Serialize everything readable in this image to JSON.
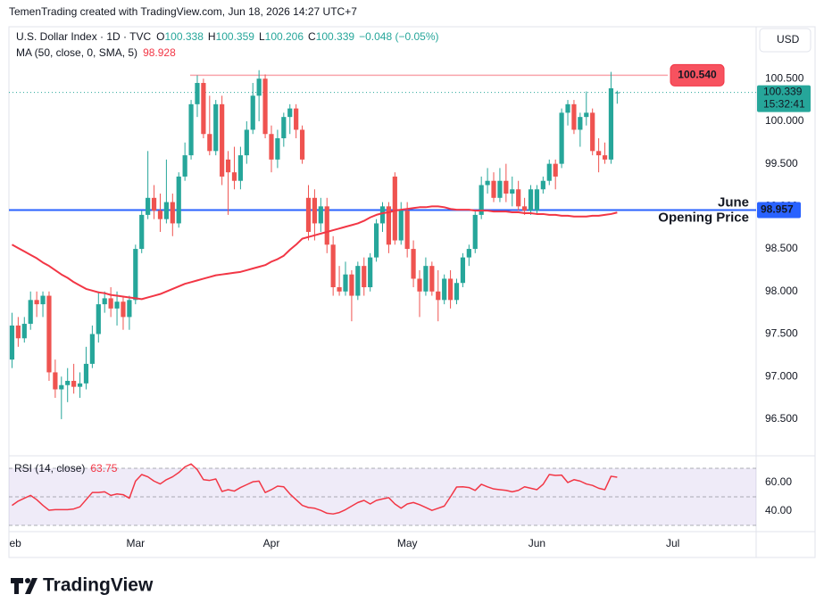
{
  "chart_data": {
    "type": "candlestick",
    "header": "TemenTrading created with TradingView.com, Jun 18, 2026 14:27 UTC+7",
    "symbol": "U.S. Dollar Index · 1D · TVC",
    "ohlc_legend": [
      {
        "label": "O",
        "value": 100.338
      },
      {
        "label": "H",
        "value": 100.359
      },
      {
        "label": "L",
        "value": 100.206
      },
      {
        "label": "C",
        "value": 100.339
      }
    ],
    "change": "−0.048 (−0.05%)",
    "currency": "USD",
    "categories": [
      "Feb",
      null,
      null,
      null,
      null,
      null,
      null,
      null,
      null,
      null,
      null,
      null,
      null,
      null,
      null,
      null,
      null,
      null,
      null,
      null,
      "Mar",
      null,
      null,
      null,
      null,
      null,
      null,
      null,
      null,
      null,
      null,
      null,
      null,
      null,
      null,
      null,
      null,
      null,
      null,
      null,
      null,
      null,
      "Apr",
      null,
      null,
      null,
      null,
      null,
      null,
      null,
      null,
      null,
      null,
      null,
      null,
      null,
      null,
      null,
      null,
      null,
      null,
      null,
      null,
      null,
      "May",
      null,
      null,
      null,
      null,
      null,
      null,
      null,
      null,
      null,
      null,
      null,
      null,
      null,
      null,
      null,
      null,
      null,
      null,
      null,
      null,
      "Jun",
      null,
      null,
      null,
      null,
      null,
      null,
      null,
      null,
      null,
      null,
      null,
      null,
      null,
      null,
      null,
      null,
      null,
      null,
      null,
      null,
      null,
      "Jul",
      null,
      null,
      null,
      null,
      null,
      null,
      null,
      null,
      null,
      null,
      null,
      null,
      null
    ],
    "open": [
      97.2,
      97.6,
      97.45,
      97.62,
      97.9,
      97.85,
      97.95,
      97.05,
      96.85,
      96.9,
      96.95,
      96.88,
      96.92,
      97.15,
      97.5,
      97.85,
      97.92,
      97.8,
      97.88,
      97.7,
      97.9,
      98.5,
      98.9,
      99.1,
      98.95,
      98.85,
      99.05,
      98.8,
      99.35,
      99.6,
      100.2,
      100.45,
      99.85,
      99.65,
      100.2,
      99.55,
      99.4,
      99.3,
      99.6,
      99.9,
      100.3,
      100.5,
      99.85,
      99.55,
      99.8,
      100.05,
      100.15,
      99.9,
      99.1,
      99.1,
      98.8,
      99.0,
      98.55,
      98.05,
      98.0,
      98.2,
      97.95,
      98.3,
      98.05,
      98.4,
      98.8,
      99.0,
      99.35,
      98.6,
      98.95,
      98.5,
      98.15,
      98.0,
      98.3,
      98.0,
      97.9,
      98.15,
      97.9,
      98.1,
      98.4,
      98.5,
      98.9,
      99.25,
      99.3,
      99.1,
      99.3,
      99.15,
      99.2,
      99.0,
      98.95,
      98.95,
      99.2,
      99.3,
      99.5,
      99.5,
      100.1,
      100.2,
      99.9,
      100.05,
      100.1,
      99.65,
      99.6,
      99.55,
      100.338,
      null,
      null,
      null,
      null,
      null,
      null,
      null,
      null,
      null,
      null,
      null,
      null,
      null,
      null,
      null,
      null,
      null,
      null,
      null,
      null,
      null,
      null
    ],
    "high": [
      97.75,
      97.7,
      97.7,
      98.0,
      98.0,
      98.0,
      98.0,
      97.2,
      97.0,
      97.1,
      97.15,
      97.05,
      97.35,
      97.6,
      98.0,
      98.0,
      98.05,
      98.0,
      97.95,
      97.95,
      98.55,
      98.95,
      99.65,
      99.25,
      99.15,
      99.55,
      99.15,
      99.4,
      99.75,
      100.25,
      100.54,
      100.5,
      100.3,
      100.25,
      100.3,
      99.65,
      99.7,
      99.7,
      100.0,
      100.45,
      100.6,
      100.55,
      99.95,
      99.9,
      100.1,
      100.2,
      100.2,
      99.95,
      99.25,
      99.2,
      99.1,
      99.1,
      98.65,
      98.3,
      98.35,
      98.25,
      98.35,
      98.4,
      98.45,
      98.85,
      99.05,
      99.05,
      99.4,
      99.05,
      99.05,
      98.6,
      98.25,
      98.4,
      98.35,
      98.25,
      98.2,
      98.25,
      98.15,
      98.45,
      98.55,
      98.95,
      99.35,
      99.45,
      99.4,
      99.45,
      99.5,
      99.35,
      99.3,
      99.1,
      99.25,
      99.25,
      99.35,
      99.55,
      99.55,
      100.15,
      100.25,
      100.25,
      100.1,
      100.35,
      100.15,
      99.8,
      99.75,
      100.58,
      100.359,
      null,
      null,
      null,
      null,
      null,
      null,
      null,
      null,
      null,
      null,
      null,
      null,
      null,
      null,
      null,
      null,
      null,
      null,
      null,
      null,
      null,
      null
    ],
    "low": [
      97.1,
      97.35,
      97.4,
      97.55,
      97.7,
      97.7,
      96.95,
      96.75,
      96.5,
      96.7,
      96.8,
      96.75,
      96.85,
      97.1,
      97.4,
      97.75,
      97.7,
      97.6,
      97.55,
      97.55,
      97.85,
      98.45,
      98.85,
      98.85,
      98.7,
      98.8,
      98.65,
      98.75,
      99.3,
      99.55,
      100.05,
      99.8,
      99.6,
      99.6,
      99.25,
      98.9,
      99.2,
      99.2,
      99.5,
      99.85,
      100.0,
      99.8,
      99.4,
      99.45,
      99.7,
      99.85,
      99.8,
      99.5,
      98.6,
      98.6,
      98.7,
      98.45,
      97.95,
      97.95,
      97.95,
      97.65,
      97.9,
      97.95,
      98.0,
      98.35,
      98.7,
      98.45,
      98.55,
      98.55,
      98.4,
      98.05,
      97.7,
      97.95,
      97.95,
      97.65,
      97.85,
      97.8,
      97.85,
      98.05,
      98.3,
      98.45,
      98.85,
      99.15,
      99.05,
      99.05,
      99.05,
      99.0,
      98.95,
      98.9,
      98.9,
      98.9,
      99.15,
      99.25,
      99.2,
      99.45,
      99.95,
      99.85,
      99.7,
      99.95,
      99.6,
      99.4,
      99.5,
      99.5,
      100.206,
      null,
      null,
      null,
      null,
      null,
      null,
      null,
      null,
      null,
      null,
      null,
      null,
      null,
      null,
      null,
      null,
      null,
      null,
      null,
      null,
      null,
      null
    ],
    "close": [
      97.6,
      97.45,
      97.62,
      97.9,
      97.85,
      97.95,
      97.05,
      96.85,
      96.9,
      96.95,
      96.88,
      96.92,
      97.15,
      97.5,
      97.85,
      97.92,
      97.8,
      97.88,
      97.7,
      97.9,
      98.5,
      98.9,
      99.1,
      98.95,
      98.85,
      99.05,
      98.8,
      99.35,
      99.6,
      100.2,
      100.45,
      99.85,
      99.65,
      100.2,
      99.35,
      99.4,
      99.3,
      99.6,
      99.9,
      100.3,
      100.5,
      99.85,
      99.55,
      99.8,
      100.05,
      100.15,
      99.9,
      99.55,
      98.7,
      98.8,
      99.0,
      98.55,
      98.05,
      98.0,
      98.2,
      97.95,
      98.3,
      98.05,
      98.4,
      98.8,
      99.0,
      98.55,
      98.6,
      98.95,
      98.5,
      98.15,
      98.0,
      98.3,
      98.0,
      97.9,
      98.15,
      97.9,
      98.1,
      98.4,
      98.5,
      98.9,
      99.25,
      99.3,
      99.1,
      99.3,
      99.15,
      99.2,
      99.0,
      98.95,
      99.2,
      99.2,
      99.3,
      99.5,
      99.35,
      100.1,
      100.2,
      99.9,
      100.05,
      100.1,
      99.65,
      99.6,
      99.55,
      100.387,
      100.339,
      null,
      null,
      null,
      null,
      null,
      null,
      null,
      null,
      null,
      null,
      null,
      null,
      null,
      null,
      null,
      null,
      null,
      null,
      null,
      null,
      null,
      null
    ],
    "up_color": "#26a69a",
    "down_color": "#ef5350",
    "ylim": [
      96.08,
      101.11
    ],
    "yticks": [
      {
        "value": 96.5,
        "label": "96.500"
      },
      {
        "value": 97,
        "label": "97.000"
      },
      {
        "value": 97.5,
        "label": "97.500"
      },
      {
        "value": 98,
        "label": "98.000"
      },
      {
        "value": 98.5,
        "label": "98.500"
      },
      {
        "value": 99,
        "label": "99.000"
      },
      {
        "value": 99.5,
        "label": "99.500"
      },
      {
        "value": 100,
        "label": "100.000"
      },
      {
        "value": 100.5,
        "label": "100.500"
      }
    ],
    "moving_average": {
      "name": "MA (50, close, 0, SMA, 5)",
      "last": 98.928,
      "color": "#f23645",
      "values": [
        98.55,
        98.51,
        98.47,
        98.43,
        98.39,
        98.34,
        98.3,
        98.25,
        98.2,
        98.16,
        98.11,
        98.07,
        98.03,
        98.01,
        97.99,
        97.98,
        97.96,
        97.95,
        97.94,
        97.93,
        97.92,
        97.91,
        97.93,
        97.95,
        97.97,
        98.0,
        98.03,
        98.06,
        98.09,
        98.11,
        98.13,
        98.15,
        98.17,
        98.19,
        98.2,
        98.21,
        98.22,
        98.23,
        98.25,
        98.27,
        98.29,
        98.31,
        98.35,
        98.38,
        98.42,
        98.49,
        98.55,
        98.62,
        98.64,
        98.66,
        98.68,
        98.7,
        98.72,
        98.74,
        98.76,
        98.78,
        98.8,
        98.83,
        98.87,
        98.9,
        98.92,
        98.93,
        98.95,
        98.96,
        98.97,
        98.98,
        98.99,
        98.99,
        99.0,
        99.0,
        98.99,
        98.97,
        98.96,
        98.96,
        98.96,
        98.95,
        98.95,
        98.95,
        98.94,
        98.94,
        98.94,
        98.93,
        98.93,
        98.92,
        98.92,
        98.91,
        98.91,
        98.9,
        98.9,
        98.89,
        98.89,
        98.88,
        98.88,
        98.88,
        98.89,
        98.89,
        98.9,
        98.91,
        98.928,
        null,
        null,
        null,
        null,
        null,
        null,
        null,
        null,
        null,
        null,
        null,
        null,
        null,
        null,
        null,
        null,
        null,
        null,
        null,
        null,
        null,
        null
      ]
    },
    "high_line": {
      "value": 100.54,
      "label": "100.540",
      "color": "#f23645"
    },
    "opening_line": {
      "value": 98.957,
      "texts": [
        "June",
        "Opening Price"
      ],
      "color": "#2962ff"
    },
    "current_price": {
      "value": 100.339,
      "countdown": "15:32:41",
      "color": "#26a69a"
    },
    "rsi": {
      "name": "RSI (14, close)",
      "last": 63.75,
      "color": "#f23645",
      "band_color": "#7e57c2",
      "ylim": [
        26.25,
        78.1
      ],
      "yticks": [
        {
          "value": 40,
          "label": "40.00"
        },
        {
          "value": 60,
          "label": "60.00"
        }
      ],
      "bands": [
        30,
        50,
        70
      ],
      "values": [
        44,
        47,
        49,
        51,
        48,
        44,
        40.6,
        41,
        41,
        41,
        41.5,
        43,
        48,
        53,
        53,
        53.5,
        51,
        52,
        51.5,
        49,
        61,
        65.6,
        64,
        61,
        59,
        62,
        64,
        67,
        71,
        73,
        69,
        62,
        61.5,
        62.5,
        53.75,
        55,
        54,
        56.5,
        58.5,
        60.5,
        61,
        53,
        55,
        57.5,
        57,
        52,
        48,
        44,
        42.5,
        42,
        40.5,
        38.5,
        38,
        39,
        41,
        43.5,
        46,
        47.5,
        45,
        47.5,
        48.5,
        49.4,
        45,
        42,
        45,
        46,
        44.5,
        42.5,
        40.5,
        42,
        43.5,
        50,
        56.9,
        57,
        56.5,
        54.5,
        58.75,
        57,
        55.5,
        55,
        54.5,
        53.5,
        54.5,
        57,
        56,
        55,
        58.75,
        65.6,
        65,
        65.2,
        60,
        62,
        61,
        59,
        58,
        56,
        55,
        64.4,
        63.75,
        null,
        null,
        null,
        null,
        null,
        null,
        null,
        null,
        null,
        null,
        null,
        null,
        null,
        null,
        null,
        null,
        null,
        null,
        null,
        null,
        null,
        null
      ]
    },
    "footer": "TradingView"
  }
}
